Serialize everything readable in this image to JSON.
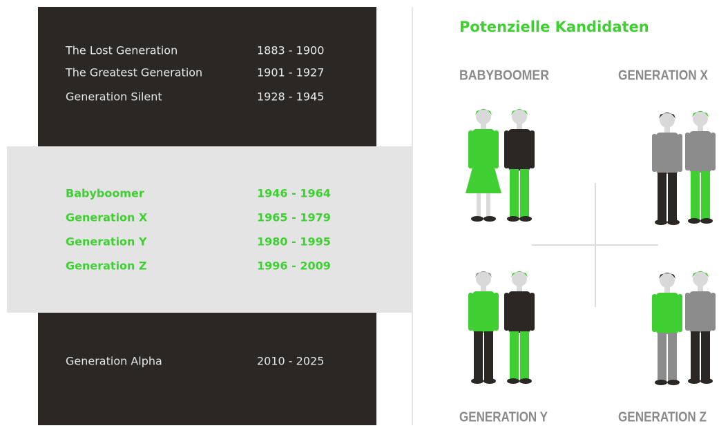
{
  "generations": {
    "past": [
      {
        "name": "The Lost Generation",
        "years": "1883 - 1900"
      },
      {
        "name": "The Greatest Generation",
        "years": "1901 - 1927"
      },
      {
        "name": "Generation Silent",
        "years": "1928 - 1945"
      }
    ],
    "candidates": [
      {
        "name": "Babyboomer",
        "years": "1946 - 1964"
      },
      {
        "name": "Generation X",
        "years": "1965 - 1979"
      },
      {
        "name": "Generation Y",
        "years": "1980 - 1995"
      },
      {
        "name": "Generation Z",
        "years": "1996 - 2009"
      }
    ],
    "future": [
      {
        "name": "Generation Alpha",
        "years": "2010 - 2025"
      }
    ]
  },
  "panel": {
    "title": "Potenzielle Kandidaten",
    "groups": [
      "BABYBOOMER",
      "GENERATION X",
      "GENERATION Y",
      "GENERATION Z"
    ]
  }
}
